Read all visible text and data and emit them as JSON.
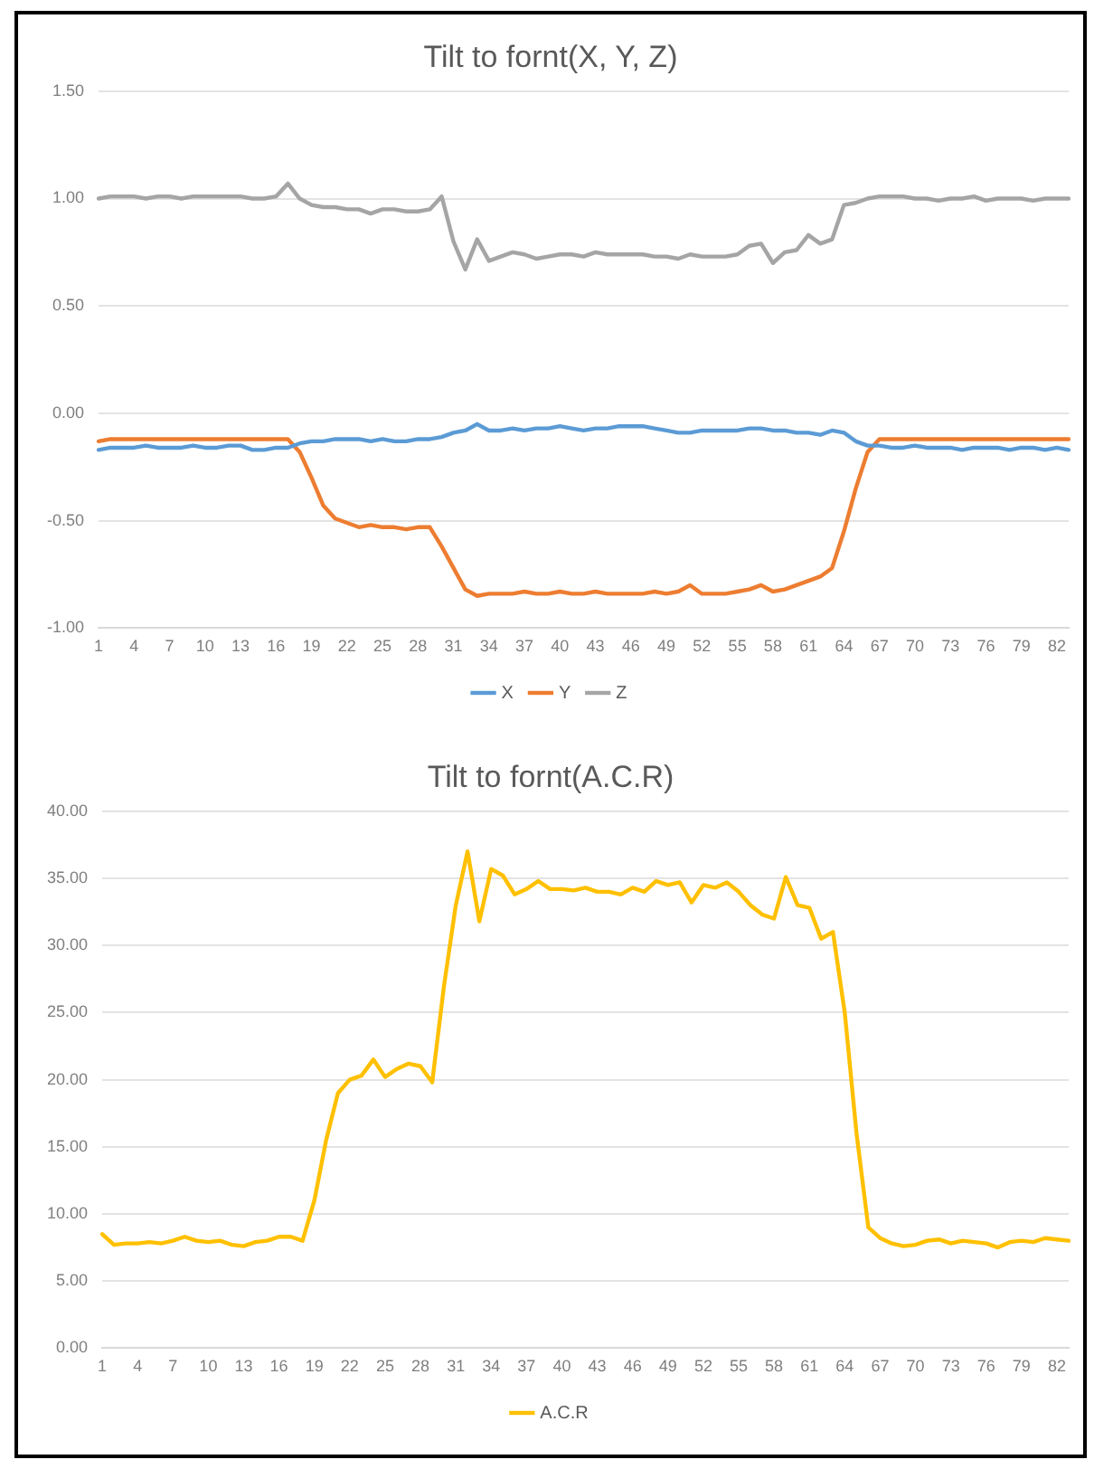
{
  "chart_data": [
    {
      "type": "line",
      "title": "Tilt to fornt(X, Y, Z)",
      "categories": [
        "1",
        null,
        null,
        "4",
        null,
        null,
        "7",
        null,
        null,
        "10",
        null,
        null,
        "13",
        null,
        null,
        "16",
        null,
        null,
        "19",
        null,
        null,
        "22",
        null,
        null,
        "25",
        null,
        null,
        "28",
        null,
        null,
        "31",
        null,
        null,
        "34",
        null,
        null,
        "37",
        null,
        null,
        "40",
        null,
        null,
        "43",
        null,
        null,
        "46",
        null,
        null,
        "49",
        null,
        null,
        "52",
        null,
        null,
        "55",
        null,
        null,
        "58",
        null,
        null,
        "61",
        null,
        null,
        "64",
        null,
        null,
        "67",
        null,
        null,
        "70",
        null,
        null,
        "73",
        null,
        null,
        "76",
        null,
        null,
        "79",
        null,
        null,
        "82",
        null
      ],
      "series": [
        {
          "name": "X",
          "color": "#5b9bd5",
          "values": [
            -0.17,
            -0.16,
            -0.16,
            -0.16,
            -0.15,
            -0.16,
            -0.16,
            -0.16,
            -0.15,
            -0.16,
            -0.16,
            -0.15,
            -0.15,
            -0.17,
            -0.17,
            -0.16,
            -0.16,
            -0.14,
            -0.13,
            -0.13,
            -0.12,
            -0.12,
            -0.12,
            -0.13,
            -0.12,
            -0.13,
            -0.13,
            -0.12,
            -0.12,
            -0.11,
            -0.09,
            -0.08,
            -0.05,
            -0.08,
            -0.08,
            -0.07,
            -0.08,
            -0.07,
            -0.07,
            -0.06,
            -0.07,
            -0.08,
            -0.07,
            -0.07,
            -0.06,
            -0.06,
            -0.06,
            -0.07,
            -0.08,
            -0.09,
            -0.09,
            -0.08,
            -0.08,
            -0.08,
            -0.08,
            -0.07,
            -0.07,
            -0.08,
            -0.08,
            -0.09,
            -0.09,
            -0.1,
            -0.08,
            -0.09,
            -0.13,
            -0.15,
            -0.15,
            -0.16,
            -0.16,
            -0.15,
            -0.16,
            -0.16,
            -0.16,
            -0.17,
            -0.16,
            -0.16,
            -0.16,
            -0.17,
            -0.16,
            -0.16,
            -0.17,
            -0.16,
            -0.17
          ]
        },
        {
          "name": "Y",
          "color": "#ed7d31",
          "values": [
            -0.13,
            -0.12,
            -0.12,
            -0.12,
            -0.12,
            -0.12,
            -0.12,
            -0.12,
            -0.12,
            -0.12,
            -0.12,
            -0.12,
            -0.12,
            -0.12,
            -0.12,
            -0.12,
            -0.12,
            -0.18,
            -0.3,
            -0.43,
            -0.49,
            -0.51,
            -0.53,
            -0.52,
            -0.53,
            -0.53,
            -0.54,
            -0.53,
            -0.53,
            -0.62,
            -0.72,
            -0.82,
            -0.85,
            -0.84,
            -0.84,
            -0.84,
            -0.83,
            -0.84,
            -0.84,
            -0.83,
            -0.84,
            -0.84,
            -0.83,
            -0.84,
            -0.84,
            -0.84,
            -0.84,
            -0.83,
            -0.84,
            -0.83,
            -0.8,
            -0.84,
            -0.84,
            -0.84,
            -0.83,
            -0.82,
            -0.8,
            -0.83,
            -0.82,
            -0.8,
            -0.78,
            -0.76,
            -0.72,
            -0.55,
            -0.35,
            -0.18,
            -0.12,
            -0.12,
            -0.12,
            -0.12,
            -0.12,
            -0.12,
            -0.12,
            -0.12,
            -0.12,
            -0.12,
            -0.12,
            -0.12,
            -0.12,
            -0.12,
            -0.12,
            -0.12,
            -0.12
          ]
        },
        {
          "name": "Z",
          "color": "#a5a5a5",
          "values": [
            1.0,
            1.01,
            1.01,
            1.01,
            1.0,
            1.01,
            1.01,
            1.0,
            1.01,
            1.01,
            1.01,
            1.01,
            1.01,
            1.0,
            1.0,
            1.01,
            1.07,
            1.0,
            0.97,
            0.96,
            0.96,
            0.95,
            0.95,
            0.93,
            0.95,
            0.95,
            0.94,
            0.94,
            0.95,
            1.01,
            0.8,
            0.67,
            0.81,
            0.71,
            0.73,
            0.75,
            0.74,
            0.72,
            0.73,
            0.74,
            0.74,
            0.73,
            0.75,
            0.74,
            0.74,
            0.74,
            0.74,
            0.73,
            0.73,
            0.72,
            0.74,
            0.73,
            0.73,
            0.73,
            0.74,
            0.78,
            0.79,
            0.7,
            0.75,
            0.76,
            0.83,
            0.79,
            0.81,
            0.97,
            0.98,
            1.0,
            1.01,
            1.01,
            1.01,
            1.0,
            1.0,
            0.99,
            1.0,
            1.0,
            1.01,
            0.99,
            1.0,
            1.0,
            1.0,
            0.99,
            1.0,
            1.0,
            1.0
          ]
        }
      ],
      "ylim": [
        -1,
        1.5
      ],
      "yticks": [
        {
          "value": -1,
          "label": "-1.00"
        },
        {
          "value": -0.5,
          "label": "-0.50"
        },
        {
          "value": 0,
          "label": "0.00"
        },
        {
          "value": 0.5,
          "label": "0.50"
        },
        {
          "value": 1,
          "label": "1.00"
        },
        {
          "value": 1.5,
          "label": "1.50"
        }
      ],
      "grid": "y",
      "legend": "bottom",
      "marker": "none"
    },
    {
      "type": "line",
      "title": "Tilt to fornt(A.C.R)",
      "categories": [
        "1",
        null,
        null,
        "4",
        null,
        null,
        "7",
        null,
        null,
        "10",
        null,
        null,
        "13",
        null,
        null,
        "16",
        null,
        null,
        "19",
        null,
        null,
        "22",
        null,
        null,
        "25",
        null,
        null,
        "28",
        null,
        null,
        "31",
        null,
        null,
        "34",
        null,
        null,
        "37",
        null,
        null,
        "40",
        null,
        null,
        "43",
        null,
        null,
        "46",
        null,
        null,
        "49",
        null,
        null,
        "52",
        null,
        null,
        "55",
        null,
        null,
        "58",
        null,
        null,
        "61",
        null,
        null,
        "64",
        null,
        null,
        "67",
        null,
        null,
        "70",
        null,
        null,
        "73",
        null,
        null,
        "76",
        null,
        null,
        "79",
        null,
        null,
        "82",
        null
      ],
      "series": [
        {
          "name": "A.C.R",
          "color": "#ffc000",
          "values": [
            8.5,
            7.7,
            7.8,
            7.8,
            7.9,
            7.8,
            8.0,
            8.3,
            8.0,
            7.9,
            8.0,
            7.7,
            7.6,
            7.9,
            8.0,
            8.3,
            8.3,
            8.0,
            11.0,
            15.5,
            19.0,
            20.0,
            20.3,
            21.5,
            20.2,
            20.8,
            21.2,
            21.0,
            19.8,
            27.0,
            33.0,
            37.0,
            31.8,
            35.7,
            35.2,
            33.8,
            34.2,
            34.8,
            34.2,
            34.2,
            34.1,
            34.3,
            34.0,
            34.0,
            33.8,
            34.3,
            34.0,
            34.8,
            34.5,
            34.7,
            33.2,
            34.5,
            34.3,
            34.7,
            34.0,
            33.0,
            32.3,
            32.0,
            35.1,
            33.0,
            32.8,
            30.5,
            31.0,
            25.0,
            16.0,
            9.0,
            8.2,
            7.8,
            7.6,
            7.7,
            8.0,
            8.1,
            7.8,
            8.0,
            7.9,
            7.8,
            7.5,
            7.9,
            8.0,
            7.9,
            8.2,
            8.1,
            8.0
          ]
        }
      ],
      "ylim": [
        0,
        40
      ],
      "yticks": [
        {
          "value": 0,
          "label": "0.00"
        },
        {
          "value": 5,
          "label": "5.00"
        },
        {
          "value": 10,
          "label": "10.00"
        },
        {
          "value": 15,
          "label": "15.00"
        },
        {
          "value": 20,
          "label": "20.00"
        },
        {
          "value": 25,
          "label": "25.00"
        },
        {
          "value": 30,
          "label": "30.00"
        },
        {
          "value": 35,
          "label": "35.00"
        },
        {
          "value": 40,
          "label": "40.00"
        }
      ],
      "grid": "y",
      "legend": "bottom",
      "marker": "none"
    }
  ]
}
